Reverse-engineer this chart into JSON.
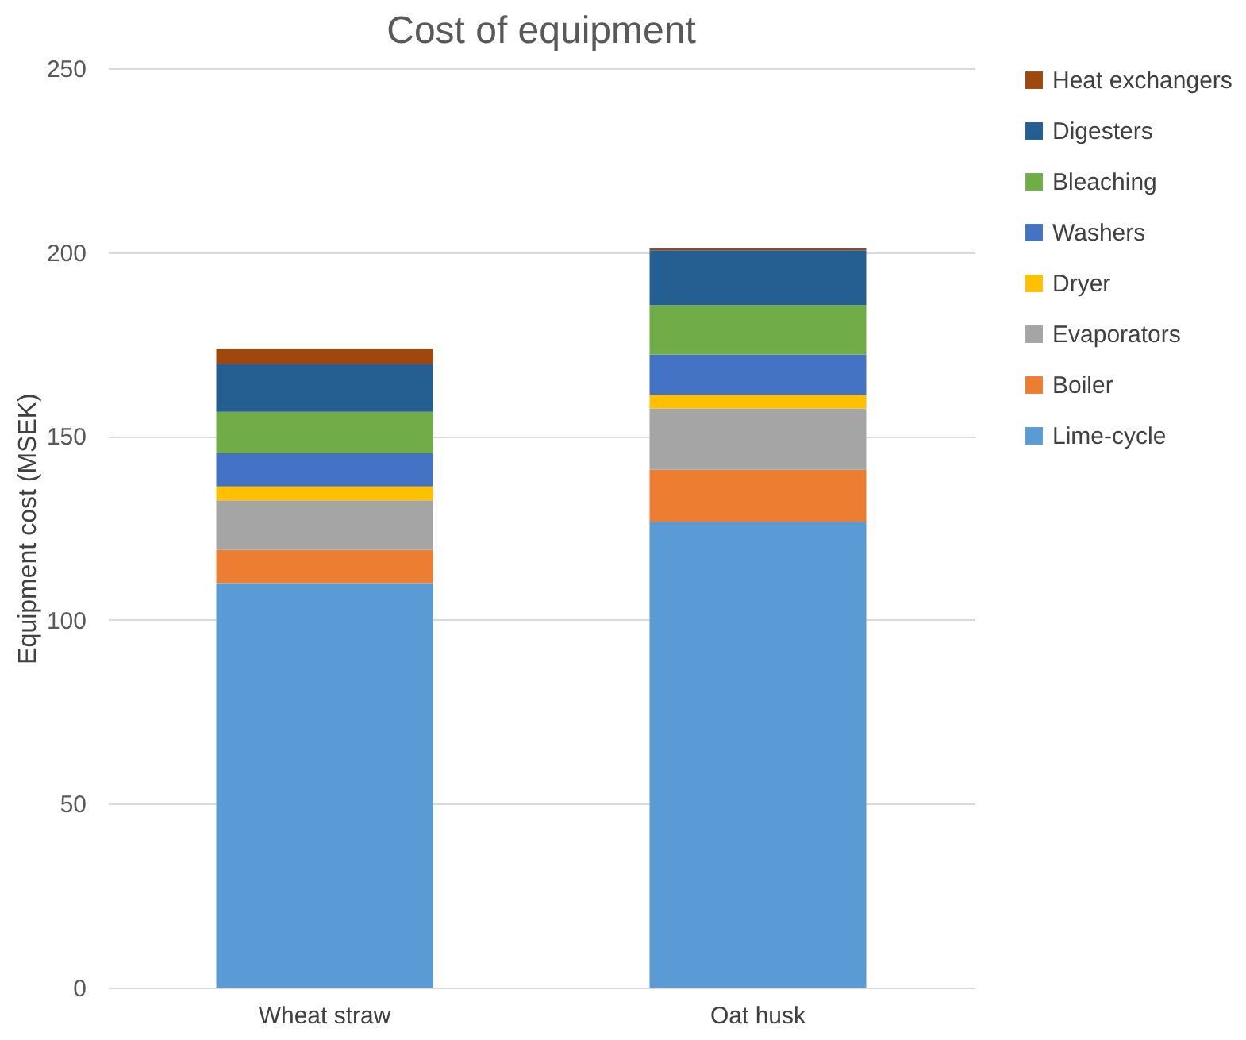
{
  "chart_data": {
    "type": "bar",
    "title": "Cost of equipment",
    "ylabel": "Equipment cost (MSEK)",
    "categories": [
      "Wheat straw",
      "Oat husk"
    ],
    "stacked": true,
    "series": [
      {
        "name": "Lime-cycle",
        "color": "#5b9bd5",
        "values": [
          110,
          126.7
        ]
      },
      {
        "name": "Boiler",
        "color": "#ed7d31",
        "values": [
          9,
          14.1
        ]
      },
      {
        "name": "Evaporators",
        "color": "#a5a5a5",
        "values": [
          13.5,
          16.7
        ]
      },
      {
        "name": "Dryer",
        "color": "#ffc000",
        "values": [
          3.8,
          3.7
        ]
      },
      {
        "name": "Washers",
        "color": "#4472c4",
        "values": [
          9,
          10.9
        ]
      },
      {
        "name": "Bleaching",
        "color": "#70ad47",
        "values": [
          11.3,
          13.5
        ]
      },
      {
        "name": "Digesters",
        "color": "#255e91",
        "values": [
          13,
          14.9
        ]
      },
      {
        "name": "Heat exchangers",
        "color": "#9e480e",
        "values": [
          4.2,
          0.5
        ]
      }
    ],
    "ylim": [
      0,
      250
    ],
    "yticks": [
      0,
      50,
      100,
      150,
      200,
      250
    ],
    "grid": "y",
    "legend": "right"
  }
}
